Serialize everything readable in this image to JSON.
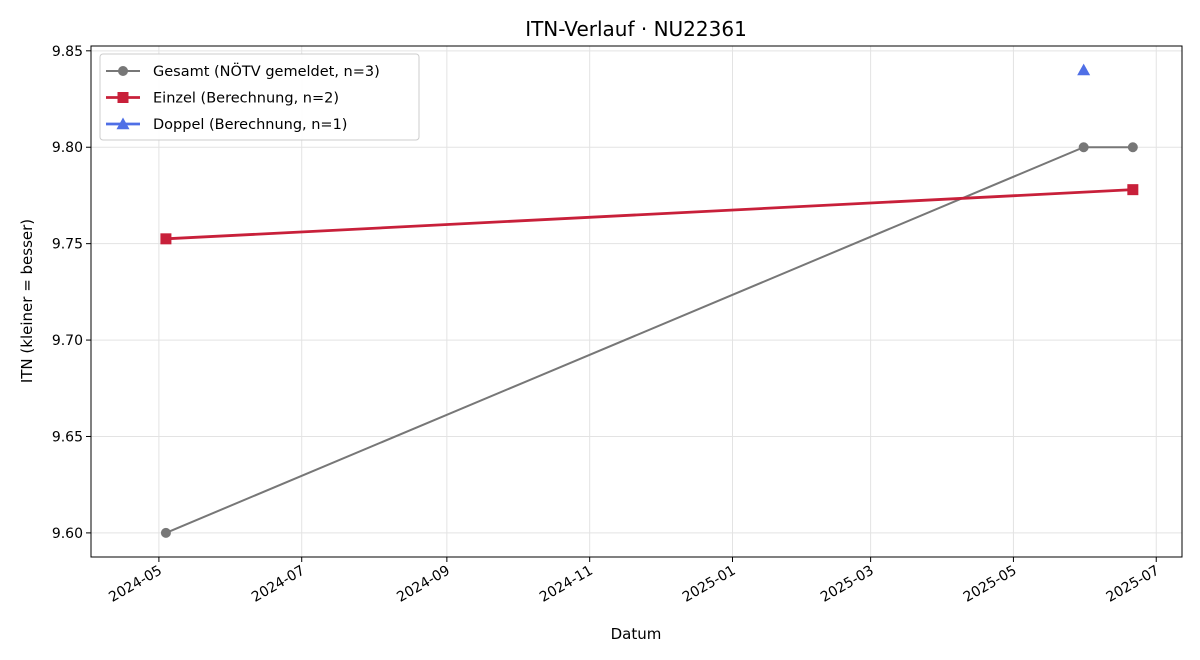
{
  "chart_data": {
    "type": "line",
    "title": "ITN-Verlauf · NU22361",
    "xlabel": "Datum",
    "ylabel": "ITN  (kleiner = besser)",
    "xlim": [
      "2024-04-02",
      "2025-07-12"
    ],
    "ylim": [
      9.5875,
      9.8525
    ],
    "yticks": [
      9.6,
      9.65,
      9.7,
      9.75,
      9.8,
      9.85
    ],
    "xticks": [
      "2024-05-01",
      "2024-07-01",
      "2024-09-01",
      "2024-11-01",
      "2025-01-01",
      "2025-03-01",
      "2025-05-01",
      "2025-07-01"
    ],
    "xtick_labels": [
      "2024-05",
      "2024-07",
      "2024-09",
      "2024-11",
      "2025-01",
      "2025-03",
      "2025-05",
      "2025-07"
    ],
    "grid": true,
    "legend_position": "top-left",
    "series": [
      {
        "name": "Gesamt (NÖTV gemeldet, n=3)",
        "color": "#777777",
        "marker": "circle",
        "points": [
          {
            "x": "2024-05-04",
            "y": 9.6
          },
          {
            "x": "2025-05-31",
            "y": 9.8
          },
          {
            "x": "2025-06-21",
            "y": 9.8
          }
        ]
      },
      {
        "name": "Einzel (Berechnung, n=2)",
        "color": "#c8203a",
        "marker": "square",
        "points": [
          {
            "x": "2024-05-04",
            "y": 9.7525
          },
          {
            "x": "2025-06-21",
            "y": 9.778
          }
        ]
      },
      {
        "name": "Doppel (Berechnung, n=1)",
        "color": "#4f6fe6",
        "marker": "triangle",
        "points": [
          {
            "x": "2025-05-31",
            "y": 9.84
          }
        ]
      }
    ]
  }
}
